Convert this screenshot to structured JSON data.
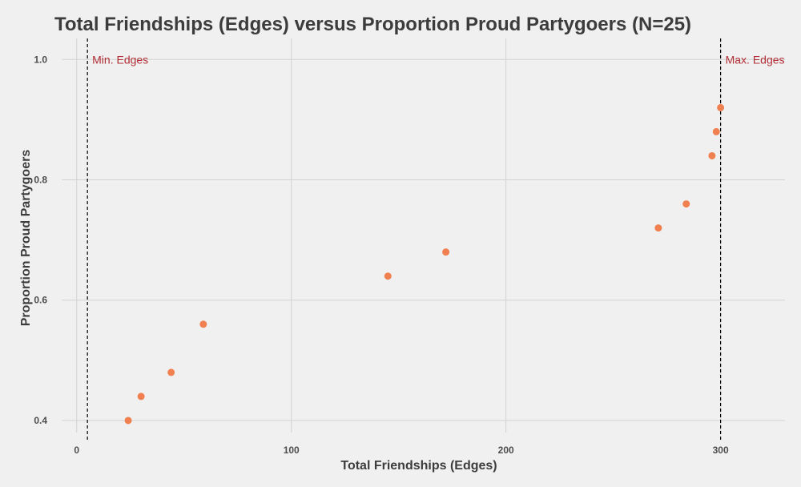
{
  "chart_data": {
    "type": "scatter",
    "title": "Total Friendships (Edges) versus Proportion Proud Partygoers (N=25)",
    "xlabel": "Total Friendships (Edges)",
    "ylabel": "Proportion Proud Partygoers",
    "xlim": [
      -7,
      330
    ],
    "ylim": [
      0.38,
      1.035
    ],
    "x_ticks": [
      0,
      100,
      200,
      300
    ],
    "y_ticks": [
      0.4,
      0.6,
      0.8,
      1.0
    ],
    "x_tick_labels": [
      "0",
      "100",
      "200",
      "300"
    ],
    "y_tick_labels": [
      "0.4",
      "0.6",
      "0.8",
      "1.0"
    ],
    "grid": true,
    "point_color": "#f0804f",
    "annotation_color": "#b22d35",
    "points": [
      {
        "x": 24,
        "y": 0.4
      },
      {
        "x": 30,
        "y": 0.44
      },
      {
        "x": 44,
        "y": 0.48
      },
      {
        "x": 59,
        "y": 0.56
      },
      {
        "x": 145,
        "y": 0.64
      },
      {
        "x": 172,
        "y": 0.68
      },
      {
        "x": 271,
        "y": 0.72
      },
      {
        "x": 284,
        "y": 0.76
      },
      {
        "x": 296,
        "y": 0.84
      },
      {
        "x": 298,
        "y": 0.88
      },
      {
        "x": 300,
        "y": 0.92
      }
    ],
    "reference_lines": [
      {
        "x": 5,
        "label": "Min. Edges",
        "label_side": "right"
      },
      {
        "x": 300,
        "label": "Max. Edges",
        "label_side": "right"
      }
    ]
  }
}
